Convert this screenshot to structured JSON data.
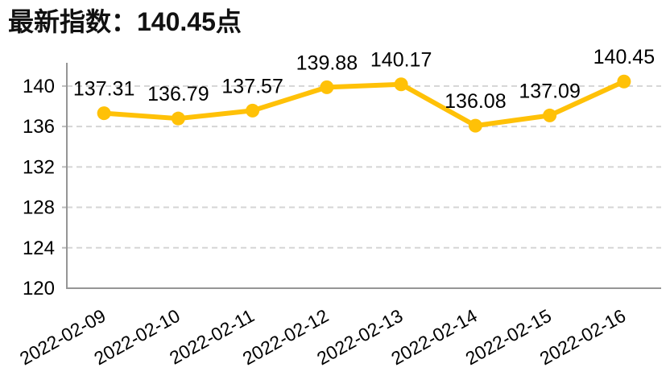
{
  "page": {
    "title": "最新指数：140.45点"
  },
  "chart_data": {
    "type": "line",
    "title": "最新指数：140.45点",
    "categories": [
      "2022-02-09",
      "2022-02-10",
      "2022-02-11",
      "2022-02-12",
      "2022-02-13",
      "2022-02-14",
      "2022-02-15",
      "2022-02-16"
    ],
    "values": [
      137.31,
      136.79,
      137.57,
      139.88,
      140.17,
      136.08,
      137.09,
      140.45
    ],
    "data_labels": [
      "137.31",
      "136.79",
      "137.57",
      "139.88",
      "140.17",
      "136.08",
      "137.09",
      "140.45"
    ],
    "yticks": [
      120,
      124,
      128,
      132,
      136,
      140
    ],
    "ylim": [
      120,
      142.3
    ],
    "xlabel": "",
    "ylabel": "",
    "grid": "horizontal-dashed",
    "legend": "none",
    "x_label_rotation_deg": -29,
    "colors": {
      "line": "#FFC107",
      "marker": "#FFC107",
      "grid": "#D5D5D5",
      "axis": "#969696",
      "tick": "#BDBDBD",
      "text": "#000000",
      "title": "#111111"
    }
  }
}
